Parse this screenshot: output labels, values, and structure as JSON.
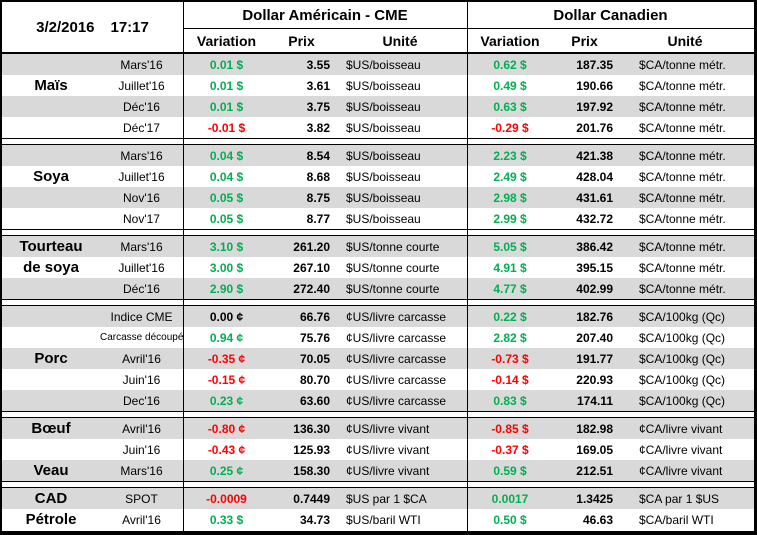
{
  "header": {
    "date": "3/2/2016",
    "time": "17:17",
    "us_title": "Dollar Américain - CME",
    "ca_title": "Dollar Canadien",
    "cols": {
      "variation": "Variation",
      "prix": "Prix",
      "unite": "Unité"
    }
  },
  "colors": {
    "positive": "#00B050",
    "negative": "#FF0000",
    "neutral": "#000000",
    "row_shade": "#D9D9D9"
  },
  "sections": [
    {
      "name": "mais",
      "rows": [
        {
          "label": "",
          "month": "Mars'16",
          "shaded": true,
          "us": {
            "var": "0.01 $",
            "trend": "positive",
            "prix": "3.55",
            "unit": "$US/boisseau"
          },
          "ca": {
            "var": "0.62 $",
            "trend": "positive",
            "prix": "187.35",
            "unit": "$CA/tonne métr."
          }
        },
        {
          "label": "Maïs",
          "month": "Juillet'16",
          "shaded": false,
          "us": {
            "var": "0.01 $",
            "trend": "positive",
            "prix": "3.61",
            "unit": "$US/boisseau"
          },
          "ca": {
            "var": "0.49 $",
            "trend": "positive",
            "prix": "190.66",
            "unit": "$CA/tonne métr."
          }
        },
        {
          "label": "",
          "month": "Déc'16",
          "shaded": true,
          "us": {
            "var": "0.01 $",
            "trend": "positive",
            "prix": "3.75",
            "unit": "$US/boisseau"
          },
          "ca": {
            "var": "0.63 $",
            "trend": "positive",
            "prix": "197.92",
            "unit": "$CA/tonne métr."
          }
        },
        {
          "label": "",
          "month": "Déc'17",
          "shaded": false,
          "us": {
            "var": "-0.01 $",
            "trend": "negative",
            "prix": "3.82",
            "unit": "$US/boisseau"
          },
          "ca": {
            "var": "-0.29 $",
            "trend": "negative",
            "prix": "201.76",
            "unit": "$CA/tonne métr."
          }
        }
      ]
    },
    {
      "name": "soya",
      "rows": [
        {
          "label": "",
          "month": "Mars'16",
          "shaded": true,
          "us": {
            "var": "0.04 $",
            "trend": "positive",
            "prix": "8.54",
            "unit": "$US/boisseau"
          },
          "ca": {
            "var": "2.23 $",
            "trend": "positive",
            "prix": "421.38",
            "unit": "$CA/tonne métr."
          }
        },
        {
          "label": "Soya",
          "month": "Juillet'16",
          "shaded": false,
          "us": {
            "var": "0.04 $",
            "trend": "positive",
            "prix": "8.68",
            "unit": "$US/boisseau"
          },
          "ca": {
            "var": "2.49 $",
            "trend": "positive",
            "prix": "428.04",
            "unit": "$CA/tonne métr."
          }
        },
        {
          "label": "",
          "month": "Nov'16",
          "shaded": true,
          "us": {
            "var": "0.05 $",
            "trend": "positive",
            "prix": "8.75",
            "unit": "$US/boisseau"
          },
          "ca": {
            "var": "2.98 $",
            "trend": "positive",
            "prix": "431.61",
            "unit": "$CA/tonne métr."
          }
        },
        {
          "label": "",
          "month": "Nov'17",
          "shaded": false,
          "us": {
            "var": "0.05 $",
            "trend": "positive",
            "prix": "8.77",
            "unit": "$US/boisseau"
          },
          "ca": {
            "var": "2.99 $",
            "trend": "positive",
            "prix": "432.72",
            "unit": "$CA/tonne métr."
          }
        }
      ]
    },
    {
      "name": "tourteau-de-soya",
      "rows": [
        {
          "label": "Tourteau",
          "month": "Mars'16",
          "shaded": true,
          "us": {
            "var": "3.10 $",
            "trend": "positive",
            "prix": "261.20",
            "unit": "$US/tonne courte"
          },
          "ca": {
            "var": "5.05 $",
            "trend": "positive",
            "prix": "386.42",
            "unit": "$CA/tonne métr."
          }
        },
        {
          "label": "de soya",
          "month": "Juillet'16",
          "shaded": false,
          "us": {
            "var": "3.00 $",
            "trend": "positive",
            "prix": "267.10",
            "unit": "$US/tonne courte"
          },
          "ca": {
            "var": "4.91 $",
            "trend": "positive",
            "prix": "395.15",
            "unit": "$CA/tonne métr."
          }
        },
        {
          "label": "",
          "month": "Déc'16",
          "shaded": true,
          "us": {
            "var": "2.90 $",
            "trend": "positive",
            "prix": "272.40",
            "unit": "$US/tonne courte"
          },
          "ca": {
            "var": "4.77 $",
            "trend": "positive",
            "prix": "402.99",
            "unit": "$CA/tonne métr."
          }
        }
      ]
    },
    {
      "name": "porc",
      "rows": [
        {
          "label": "",
          "month": "Indice CME",
          "shaded": true,
          "us": {
            "var": "0.00 ¢",
            "trend": "neutral",
            "prix": "66.76",
            "unit": "¢US/livre carcasse"
          },
          "ca": {
            "var": "0.22 $",
            "trend": "positive",
            "prix": "182.76",
            "unit": "$CA/100kg (Qc)"
          }
        },
        {
          "label": "",
          "month": "Carcasse découpée",
          "small": true,
          "shaded": false,
          "us": {
            "var": "0.94 ¢",
            "trend": "positive",
            "prix": "75.76",
            "unit": "¢US/livre carcasse"
          },
          "ca": {
            "var": "2.82 $",
            "trend": "positive",
            "prix": "207.40",
            "unit": "$CA/100kg (Qc)"
          }
        },
        {
          "label": "Porc",
          "month": "Avril'16",
          "shaded": true,
          "us": {
            "var": "-0.35 ¢",
            "trend": "negative",
            "prix": "70.05",
            "unit": "¢US/livre carcasse"
          },
          "ca": {
            "var": "-0.73 $",
            "trend": "negative",
            "prix": "191.77",
            "unit": "$CA/100kg (Qc)"
          }
        },
        {
          "label": "",
          "month": "Juin'16",
          "shaded": false,
          "us": {
            "var": "-0.15 ¢",
            "trend": "negative",
            "prix": "80.70",
            "unit": "¢US/livre carcasse"
          },
          "ca": {
            "var": "-0.14 $",
            "trend": "negative",
            "prix": "220.93",
            "unit": "$CA/100kg (Qc)"
          }
        },
        {
          "label": "",
          "month": "Dec'16",
          "shaded": true,
          "us": {
            "var": "0.23 ¢",
            "trend": "positive",
            "prix": "63.60",
            "unit": "¢US/livre carcasse"
          },
          "ca": {
            "var": "0.83 $",
            "trend": "positive",
            "prix": "174.11",
            "unit": "$CA/100kg (Qc)"
          }
        }
      ]
    },
    {
      "name": "boeuf-veau",
      "rows": [
        {
          "label": "Bœuf",
          "month": "Avril'16",
          "shaded": true,
          "us": {
            "var": "-0.80 ¢",
            "trend": "negative",
            "prix": "136.30",
            "unit": "¢US/livre vivant"
          },
          "ca": {
            "var": "-0.85 $",
            "trend": "negative",
            "prix": "182.98",
            "unit": "¢CA/livre vivant"
          }
        },
        {
          "label": "",
          "month": "Juin'16",
          "shaded": false,
          "us": {
            "var": "-0.43 ¢",
            "trend": "negative",
            "prix": "125.93",
            "unit": "¢US/livre vivant"
          },
          "ca": {
            "var": "-0.37 $",
            "trend": "negative",
            "prix": "169.05",
            "unit": "¢CA/livre vivant"
          }
        },
        {
          "label": "Veau",
          "month": "Mars'16",
          "shaded": true,
          "us": {
            "var": "0.25 ¢",
            "trend": "positive",
            "prix": "158.30",
            "unit": "¢US/livre vivant"
          },
          "ca": {
            "var": "0.59 $",
            "trend": "positive",
            "prix": "212.51",
            "unit": "¢CA/livre vivant"
          }
        }
      ]
    },
    {
      "name": "cad-petrole",
      "rows": [
        {
          "label": "CAD",
          "month": "SPOT",
          "shaded": true,
          "us": {
            "var": "-0.0009",
            "trend": "negative",
            "prix": "0.7449",
            "unit": "$US par 1 $CA"
          },
          "ca": {
            "var": "0.0017",
            "trend": "positive",
            "prix": "1.3425",
            "unit": "$CA par 1 $US"
          }
        },
        {
          "label": "Pétrole",
          "month": "Avril'16",
          "shaded": false,
          "us": {
            "var": "0.33 $",
            "trend": "positive",
            "prix": "34.73",
            "unit": "$US/baril WTI"
          },
          "ca": {
            "var": "0.50 $",
            "trend": "positive",
            "prix": "46.63",
            "unit": "$CA/baril WTI"
          }
        }
      ]
    }
  ]
}
